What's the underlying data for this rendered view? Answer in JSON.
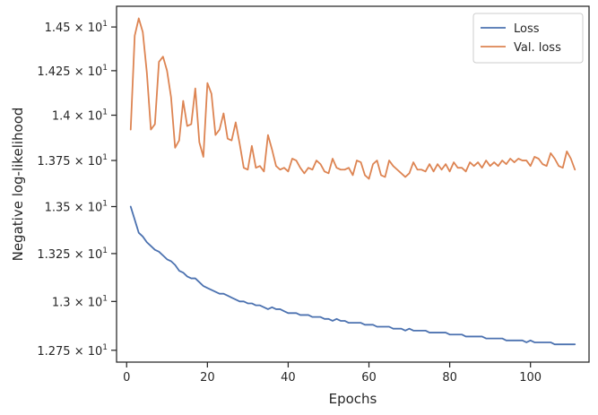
{
  "chart_data": {
    "type": "line",
    "title": "",
    "xlabel": "Epochs",
    "ylabel": "Negative log-likelihood",
    "xlim": [
      -2.5,
      114.5
    ],
    "ylim": [
      12.69,
      14.62
    ],
    "yscale": "log",
    "grid": false,
    "legend_position": "top-right",
    "x_ticks": [
      0,
      20,
      40,
      60,
      80,
      100
    ],
    "x_tick_labels": [
      "0",
      "20",
      "40",
      "60",
      "80",
      "100"
    ],
    "y_ticks": [
      12.75,
      13.0,
      13.25,
      13.5,
      13.75,
      14.0,
      14.25,
      14.5
    ],
    "y_tick_labels": [
      {
        "mantissa": "1.275",
        "base": "10",
        "exp": "1"
      },
      {
        "mantissa": "1.3",
        "base": "10",
        "exp": "1"
      },
      {
        "mantissa": "1.325",
        "base": "10",
        "exp": "1"
      },
      {
        "mantissa": "1.35",
        "base": "10",
        "exp": "1"
      },
      {
        "mantissa": "1.375",
        "base": "10",
        "exp": "1"
      },
      {
        "mantissa": "1.4",
        "base": "10",
        "exp": "1"
      },
      {
        "mantissa": "1.425",
        "base": "10",
        "exp": "1"
      },
      {
        "mantissa": "1.45",
        "base": "10",
        "exp": "1"
      }
    ],
    "series": [
      {
        "name": "Loss",
        "color": "#4c72b0",
        "y": [
          13.5,
          13.43,
          13.36,
          13.34,
          13.31,
          13.29,
          13.27,
          13.26,
          13.24,
          13.22,
          13.21,
          13.19,
          13.16,
          13.15,
          13.13,
          13.12,
          13.12,
          13.1,
          13.08,
          13.07,
          13.06,
          13.05,
          13.04,
          13.04,
          13.03,
          13.02,
          13.01,
          13.0,
          13.0,
          12.99,
          12.99,
          12.98,
          12.98,
          12.97,
          12.96,
          12.97,
          12.96,
          12.96,
          12.95,
          12.94,
          12.94,
          12.94,
          12.93,
          12.93,
          12.93,
          12.92,
          12.92,
          12.92,
          12.91,
          12.91,
          12.9,
          12.91,
          12.9,
          12.9,
          12.89,
          12.89,
          12.89,
          12.89,
          12.88,
          12.88,
          12.88,
          12.87,
          12.87,
          12.87,
          12.87,
          12.86,
          12.86,
          12.86,
          12.85,
          12.86,
          12.85,
          12.85,
          12.85,
          12.85,
          12.84,
          12.84,
          12.84,
          12.84,
          12.84,
          12.83,
          12.83,
          12.83,
          12.83,
          12.82,
          12.82,
          12.82,
          12.82,
          12.82,
          12.81,
          12.81,
          12.81,
          12.81,
          12.81,
          12.8,
          12.8,
          12.8,
          12.8,
          12.8,
          12.79,
          12.8,
          12.79,
          12.79,
          12.79,
          12.79,
          12.79,
          12.78,
          12.78,
          12.78,
          12.78,
          12.78,
          12.78
        ]
      },
      {
        "name": "Val. loss",
        "color": "#dd8452",
        "y": [
          13.92,
          14.45,
          14.55,
          14.47,
          14.24,
          13.92,
          13.95,
          14.3,
          14.33,
          14.25,
          14.1,
          13.82,
          13.86,
          14.08,
          13.94,
          13.95,
          14.15,
          13.85,
          13.77,
          14.18,
          14.12,
          13.89,
          13.92,
          14.01,
          13.87,
          13.86,
          13.96,
          13.84,
          13.71,
          13.7,
          13.83,
          13.71,
          13.72,
          13.69,
          13.89,
          13.81,
          13.72,
          13.7,
          13.71,
          13.69,
          13.76,
          13.75,
          13.71,
          13.68,
          13.71,
          13.7,
          13.75,
          13.73,
          13.69,
          13.68,
          13.76,
          13.71,
          13.7,
          13.7,
          13.71,
          13.67,
          13.75,
          13.74,
          13.67,
          13.65,
          13.73,
          13.75,
          13.67,
          13.66,
          13.75,
          13.72,
          13.7,
          13.68,
          13.66,
          13.68,
          13.74,
          13.7,
          13.7,
          13.69,
          13.73,
          13.69,
          13.73,
          13.7,
          13.73,
          13.69,
          13.74,
          13.71,
          13.71,
          13.69,
          13.74,
          13.72,
          13.74,
          13.71,
          13.75,
          13.72,
          13.74,
          13.72,
          13.75,
          13.73,
          13.76,
          13.74,
          13.76,
          13.75,
          13.75,
          13.72,
          13.77,
          13.76,
          13.73,
          13.72,
          13.79,
          13.76,
          13.72,
          13.71,
          13.8,
          13.76,
          13.7
        ]
      }
    ]
  }
}
